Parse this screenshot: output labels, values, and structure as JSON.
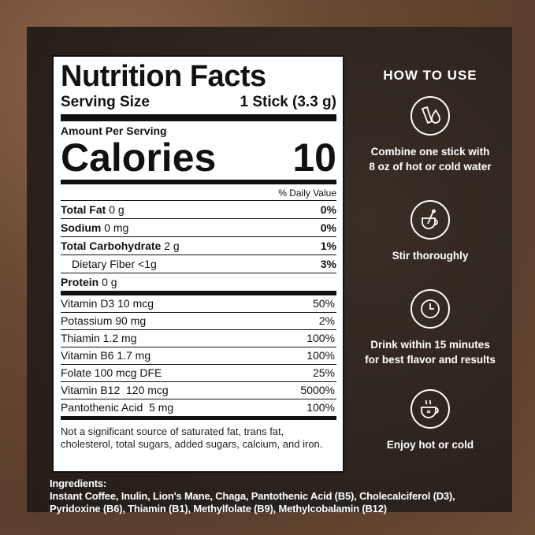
{
  "label": {
    "title": "Nutrition Facts",
    "serving_size_label": "Serving Size",
    "serving_size_value": "1 Stick (3.3 g)",
    "amount_per_serving": "Amount Per Serving",
    "calories_label": "Calories",
    "calories_value": "10",
    "daily_value_header": "% Daily Value",
    "nutrients": [
      {
        "name": "Total Fat",
        "amount": "0 g",
        "dv": "0%"
      },
      {
        "name": "Sodium",
        "amount": "0 mg",
        "dv": "0%"
      },
      {
        "name": "Total Carbohydrate",
        "amount": "2 g",
        "dv": "1%"
      },
      {
        "name": "Dietary Fiber",
        "amount": "<1g",
        "dv": "3%"
      },
      {
        "name": "Protein",
        "amount": "0 g",
        "dv": ""
      }
    ],
    "vitamins": [
      {
        "name": "Vitamin D3 10 mcg",
        "dv": "50%"
      },
      {
        "name": "Potassium 90 mg",
        "dv": "2%"
      },
      {
        "name": "Thiamin 1.2 mg",
        "dv": "100%"
      },
      {
        "name": "Vitamin B6 1.7 mg",
        "dv": "100%"
      },
      {
        "name": "Folate 100 mcg DFE",
        "dv": "25%"
      },
      {
        "name": "Vitamin B12  120 mcg",
        "dv": "5000%"
      },
      {
        "name": "Pantothenic Acid  5 mg",
        "dv": "100%"
      }
    ],
    "footnote": "Not a significant source of saturated fat, trans fat, cholesterol, total sugars, added sugars, calcium, and iron."
  },
  "ingredients": {
    "heading": "Ingredients:",
    "line1": "Instant Coffee, Inulin, Lion's Mane, Chaga, Pantothenic Acid (B5), Cholecalciferol (D3),",
    "line2": "Pyridoxine (B6), Thiamin (B1), Methylfolate (B9), Methylcobalamin (B12)"
  },
  "how_to_use": {
    "title": "HOW TO USE",
    "steps": [
      {
        "icon": "stick-and-water-drop-icon",
        "text1": "Combine one stick with",
        "text2": "8 oz of hot or cold water"
      },
      {
        "icon": "cup-with-spoon-icon",
        "text1": "Stir thoroughly",
        "text2": ""
      },
      {
        "icon": "clock-icon",
        "text1": "Drink within 15 minutes",
        "text2": "for best flavor and results"
      },
      {
        "icon": "hot-cup-icon",
        "text1": "Enjoy hot or cold",
        "text2": ""
      }
    ]
  },
  "colors": {
    "background": "#6e4d37",
    "inner": "#2b231d",
    "panel": "#ffffff",
    "text": "#111111"
  }
}
